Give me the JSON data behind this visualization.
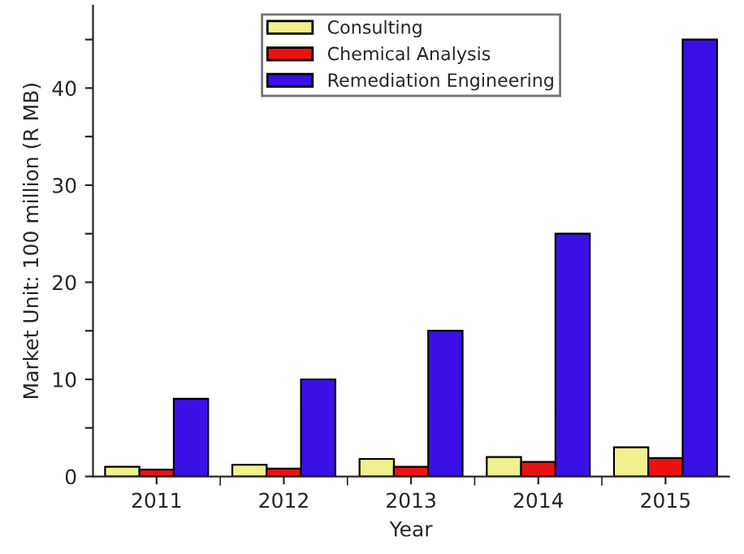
{
  "chart_data": {
    "type": "bar",
    "xlabel": "Year",
    "ylabel": "Market Unit: 100 million (R MB)",
    "categories": [
      "2011",
      "2012",
      "2013",
      "2014",
      "2015"
    ],
    "series": [
      {
        "name": "Consulting",
        "color": "#f0f08c",
        "values": [
          1.0,
          1.2,
          1.8,
          2.0,
          3.0
        ]
      },
      {
        "name": "Chemical Analysis",
        "color": "#ee1111",
        "values": [
          0.7,
          0.8,
          1.0,
          1.5,
          1.9
        ]
      },
      {
        "name": "Remediation Engineering",
        "color": "#3a10e6",
        "values": [
          8,
          10,
          15,
          25,
          45
        ]
      }
    ],
    "ylim": [
      0,
      48.5
    ],
    "yticks": [
      0,
      {
        "value": 5,
        "label": null
      },
      10,
      {
        "value": 15,
        "label": null
      },
      20,
      {
        "value": 25,
        "label": null
      },
      30,
      {
        "value": 35,
        "label": null
      },
      40,
      {
        "value": 45,
        "label": null
      }
    ],
    "legend": "top",
    "grid": false
  }
}
